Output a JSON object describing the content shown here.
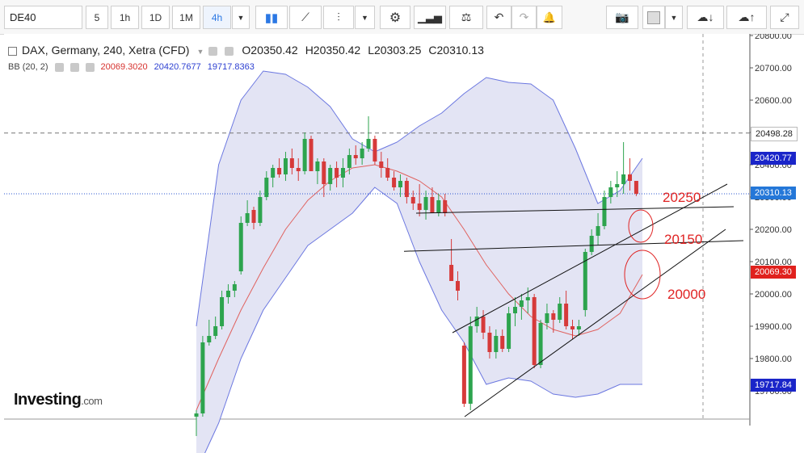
{
  "toolbar": {
    "symbol": "DE40",
    "intervals": [
      "5",
      "1h",
      "1D",
      "1M",
      "4h"
    ],
    "active_interval": "4h",
    "icons": [
      "dropdown-icon",
      "candles-icon",
      "line-chart-icon",
      "bars-icon",
      "dropdown-icon",
      "gear-icon",
      "indicators-icon",
      "compare-icon",
      "undo-icon",
      "redo-icon",
      "alert-icon",
      "camera-icon",
      "fill-icon",
      "dropdown-icon",
      "cloud-download-icon",
      "cloud-upload-icon",
      "fullscreen-icon"
    ]
  },
  "legend": {
    "title": "DAX, Germany, 240, Xetra (CFD)",
    "open": "O20350.42",
    "high": "H20350.42",
    "low": "L20303.25",
    "close": "C20310.13",
    "bb_name": "BB (20, 2)",
    "bb_mid": "20069.3020",
    "bb_upper": "20420.7677",
    "bb_lower": "19717.8363",
    "colors": {
      "mid": "#d6312e",
      "upper": "#2c3fd1",
      "lower": "#2c3fd1"
    }
  },
  "price_tags": {
    "high_line": "20498.28",
    "upper": "20420.77",
    "last": "20310.13",
    "mid": "20069.30",
    "lower": "19717.84"
  },
  "annotations": [
    "20250",
    "20150",
    "20000"
  ],
  "logo": {
    "brand": "Investing",
    "suffix": ".com"
  },
  "chart_data": {
    "type": "candlestick",
    "title": "DAX, Germany, 240, Xetra (CFD)",
    "y_axis_ticks": [
      20800,
      20700,
      20600,
      20500,
      20400,
      20300,
      20200,
      20100,
      20000,
      19900,
      19800,
      19700
    ],
    "y_axis_tick_labels": [
      "20800.00",
      "20700.00",
      "20600.00",
      "20500.00",
      "20400.00",
      "20300.00",
      "20200.00",
      "20100.00",
      "20000.00",
      "19900.00",
      "19800.00",
      "19700.00"
    ],
    "ylim": [
      19655,
      20860
    ],
    "candles": [
      {
        "o": 19620,
        "h": 19640,
        "l": 19560,
        "c": 19630
      },
      {
        "o": 19630,
        "h": 19870,
        "l": 19620,
        "c": 19850
      },
      {
        "o": 19850,
        "h": 19920,
        "l": 19840,
        "c": 19870
      },
      {
        "o": 19870,
        "h": 19930,
        "l": 19860,
        "c": 19900
      },
      {
        "o": 19900,
        "h": 20010,
        "l": 19890,
        "c": 19990
      },
      {
        "o": 19990,
        "h": 20030,
        "l": 19970,
        "c": 20010
      },
      {
        "o": 20010,
        "h": 20040,
        "l": 19990,
        "c": 20030
      },
      {
        "o": 20070,
        "h": 20240,
        "l": 20060,
        "c": 20220
      },
      {
        "o": 20220,
        "h": 20290,
        "l": 20210,
        "c": 20250
      },
      {
        "o": 20260,
        "h": 20270,
        "l": 20200,
        "c": 20220
      },
      {
        "o": 20220,
        "h": 20320,
        "l": 20210,
        "c": 20300
      },
      {
        "o": 20300,
        "h": 20380,
        "l": 20290,
        "c": 20360
      },
      {
        "o": 20360,
        "h": 20400,
        "l": 20330,
        "c": 20390
      },
      {
        "o": 20390,
        "h": 20420,
        "l": 20360,
        "c": 20370
      },
      {
        "o": 20370,
        "h": 20440,
        "l": 20350,
        "c": 20420
      },
      {
        "o": 20420,
        "h": 20450,
        "l": 20370,
        "c": 20390
      },
      {
        "o": 20390,
        "h": 20420,
        "l": 20350,
        "c": 20380
      },
      {
        "o": 20380,
        "h": 20500,
        "l": 20370,
        "c": 20480
      },
      {
        "o": 20480,
        "h": 20490,
        "l": 20380,
        "c": 20380
      },
      {
        "o": 20380,
        "h": 20420,
        "l": 20340,
        "c": 20410
      },
      {
        "o": 20410,
        "h": 20420,
        "l": 20300,
        "c": 20340
      },
      {
        "o": 20340,
        "h": 20400,
        "l": 20320,
        "c": 20390
      },
      {
        "o": 20390,
        "h": 20410,
        "l": 20330,
        "c": 20360
      },
      {
        "o": 20360,
        "h": 20420,
        "l": 20330,
        "c": 20390
      },
      {
        "o": 20390,
        "h": 20450,
        "l": 20370,
        "c": 20430
      },
      {
        "o": 20430,
        "h": 20460,
        "l": 20400,
        "c": 20420
      },
      {
        "o": 20420,
        "h": 20470,
        "l": 20400,
        "c": 20450
      },
      {
        "o": 20450,
        "h": 20550,
        "l": 20440,
        "c": 20480
      },
      {
        "o": 20480,
        "h": 20490,
        "l": 20400,
        "c": 20410
      },
      {
        "o": 20410,
        "h": 20440,
        "l": 20360,
        "c": 20390
      },
      {
        "o": 20390,
        "h": 20420,
        "l": 20350,
        "c": 20360
      },
      {
        "o": 20360,
        "h": 20380,
        "l": 20320,
        "c": 20330
      },
      {
        "o": 20330,
        "h": 20370,
        "l": 20300,
        "c": 20350
      },
      {
        "o": 20350,
        "h": 20360,
        "l": 20280,
        "c": 20300
      },
      {
        "o": 20300,
        "h": 20320,
        "l": 20260,
        "c": 20280
      },
      {
        "o": 20280,
        "h": 20340,
        "l": 20240,
        "c": 20260
      },
      {
        "o": 20260,
        "h": 20320,
        "l": 20230,
        "c": 20300
      },
      {
        "o": 20300,
        "h": 20330,
        "l": 20250,
        "c": 20250
      },
      {
        "o": 20250,
        "h": 20310,
        "l": 20240,
        "c": 20290
      },
      {
        "o": 20290,
        "h": 20310,
        "l": 20240,
        "c": 20250
      },
      {
        "o": 20090,
        "h": 20170,
        "l": 20050,
        "c": 20040
      },
      {
        "o": 20040,
        "h": 20070,
        "l": 19980,
        "c": 20010
      },
      {
        "o": 19840,
        "h": 19850,
        "l": 19650,
        "c": 19660
      },
      {
        "o": 19660,
        "h": 19930,
        "l": 19640,
        "c": 19900
      },
      {
        "o": 19900,
        "h": 19960,
        "l": 19880,
        "c": 19930
      },
      {
        "o": 19930,
        "h": 19950,
        "l": 19860,
        "c": 19880
      },
      {
        "o": 19880,
        "h": 19900,
        "l": 19800,
        "c": 19820
      },
      {
        "o": 19820,
        "h": 19890,
        "l": 19800,
        "c": 19870
      },
      {
        "o": 19870,
        "h": 19890,
        "l": 19820,
        "c": 19830
      },
      {
        "o": 19830,
        "h": 19960,
        "l": 19820,
        "c": 19940
      },
      {
        "o": 19940,
        "h": 19990,
        "l": 19900,
        "c": 19960
      },
      {
        "o": 19960,
        "h": 20000,
        "l": 19920,
        "c": 19980
      },
      {
        "o": 19980,
        "h": 20020,
        "l": 19940,
        "c": 19990
      },
      {
        "o": 19990,
        "h": 20000,
        "l": 19770,
        "c": 19780
      },
      {
        "o": 19780,
        "h": 19920,
        "l": 19770,
        "c": 19910
      },
      {
        "o": 19910,
        "h": 19970,
        "l": 19890,
        "c": 19940
      },
      {
        "o": 19940,
        "h": 19950,
        "l": 19880,
        "c": 19920
      },
      {
        "o": 19920,
        "h": 19990,
        "l": 19910,
        "c": 19970
      },
      {
        "o": 19970,
        "h": 20010,
        "l": 19890,
        "c": 19900
      },
      {
        "o": 19900,
        "h": 19920,
        "l": 19860,
        "c": 19890
      },
      {
        "o": 19890,
        "h": 19920,
        "l": 19870,
        "c": 19900
      },
      {
        "o": 19950,
        "h": 20140,
        "l": 19930,
        "c": 20130
      },
      {
        "o": 20130,
        "h": 20200,
        "l": 20120,
        "c": 20180
      },
      {
        "o": 20180,
        "h": 20250,
        "l": 20150,
        "c": 20210
      },
      {
        "o": 20210,
        "h": 20320,
        "l": 20200,
        "c": 20300
      },
      {
        "o": 20300,
        "h": 20350,
        "l": 20280,
        "c": 20330
      },
      {
        "o": 20330,
        "h": 20380,
        "l": 20300,
        "c": 20340
      },
      {
        "o": 20340,
        "h": 20470,
        "l": 20310,
        "c": 20370
      },
      {
        "o": 20370,
        "h": 20420,
        "l": 20320,
        "c": 20350
      },
      {
        "o": 20350,
        "h": 20350,
        "l": 20303,
        "c": 20310
      }
    ],
    "bb_upper": [
      19900,
      20400,
      20600,
      20690,
      20680,
      20640,
      20580,
      20480,
      20440,
      20470,
      20520,
      20560,
      20620,
      20670,
      20655,
      20650,
      20600,
      20450,
      20280,
      20320,
      20420
    ],
    "bb_middle": [
      19640,
      19800,
      19950,
      20080,
      20200,
      20290,
      20350,
      20390,
      20400,
      20380,
      20350,
      20300,
      20200,
      20090,
      20000,
      19930,
      19890,
      19870,
      19890,
      19940,
      20060
    ],
    "bb_lower": [
      19450,
      19600,
      19800,
      19950,
      20050,
      20150,
      20200,
      20250,
      20330,
      20280,
      20100,
      19950,
      19850,
      19720,
      19740,
      19730,
      19690,
      19680,
      19690,
      19720,
      19720
    ],
    "horizontal_levels": [
      20498.28,
      20310.13
    ],
    "annotation_levels": [
      20250,
      20150,
      20000
    ]
  }
}
